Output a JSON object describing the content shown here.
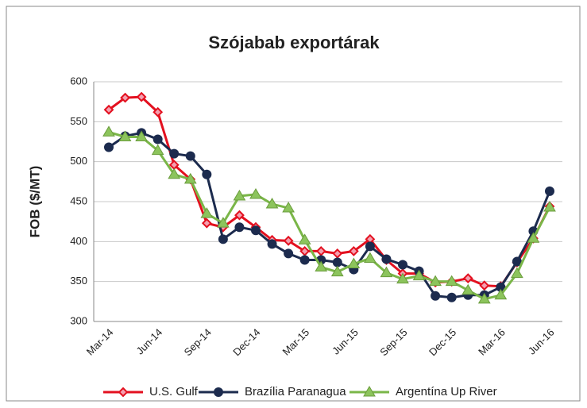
{
  "chart_data": {
    "type": "line",
    "title": "Szójabab exportárak",
    "y_label": "FOB ($/MT)",
    "categories": [
      "Mar-14",
      null,
      null,
      "Jun-14",
      null,
      null,
      "Sep-14",
      null,
      null,
      "Dec-14",
      null,
      null,
      "Mar-15",
      null,
      null,
      "Jun-15",
      null,
      null,
      "Sep-15",
      null,
      null,
      "Dec-15",
      null,
      null,
      "Mar-16",
      null,
      null,
      "Jun-16"
    ],
    "series": [
      {
        "name": "U.S. Gulf",
        "color": "#e3101f",
        "marker": "diamond",
        "values": [
          565,
          580,
          581,
          562,
          496,
          478,
          423,
          418,
          433,
          418,
          402,
          401,
          388,
          388,
          385,
          388,
          403,
          377,
          360,
          360,
          349,
          350,
          354,
          345,
          344,
          374,
          404,
          444
        ]
      },
      {
        "name": "Brazília Paranagua",
        "color": "#1c2b4e",
        "marker": "circle",
        "values": [
          518,
          532,
          536,
          528,
          510,
          507,
          484,
          403,
          418,
          414,
          397,
          385,
          377,
          377,
          374,
          365,
          394,
          378,
          371,
          363,
          332,
          330,
          333,
          333,
          343,
          375,
          413,
          463
        ]
      },
      {
        "name": "Argentína Up River",
        "color": "#7ab648",
        "marker": "triangle",
        "values": [
          537,
          531,
          531,
          514,
          484,
          478,
          435,
          423,
          457,
          459,
          447,
          442,
          402,
          368,
          362,
          372,
          379,
          361,
          353,
          357,
          350,
          350,
          339,
          328,
          333,
          360,
          404,
          443
        ]
      }
    ],
    "ylim": [
      300,
      600
    ],
    "yticks": [
      300,
      350,
      400,
      450,
      500,
      550,
      600
    ],
    "grid": true,
    "legend": "bottom"
  }
}
